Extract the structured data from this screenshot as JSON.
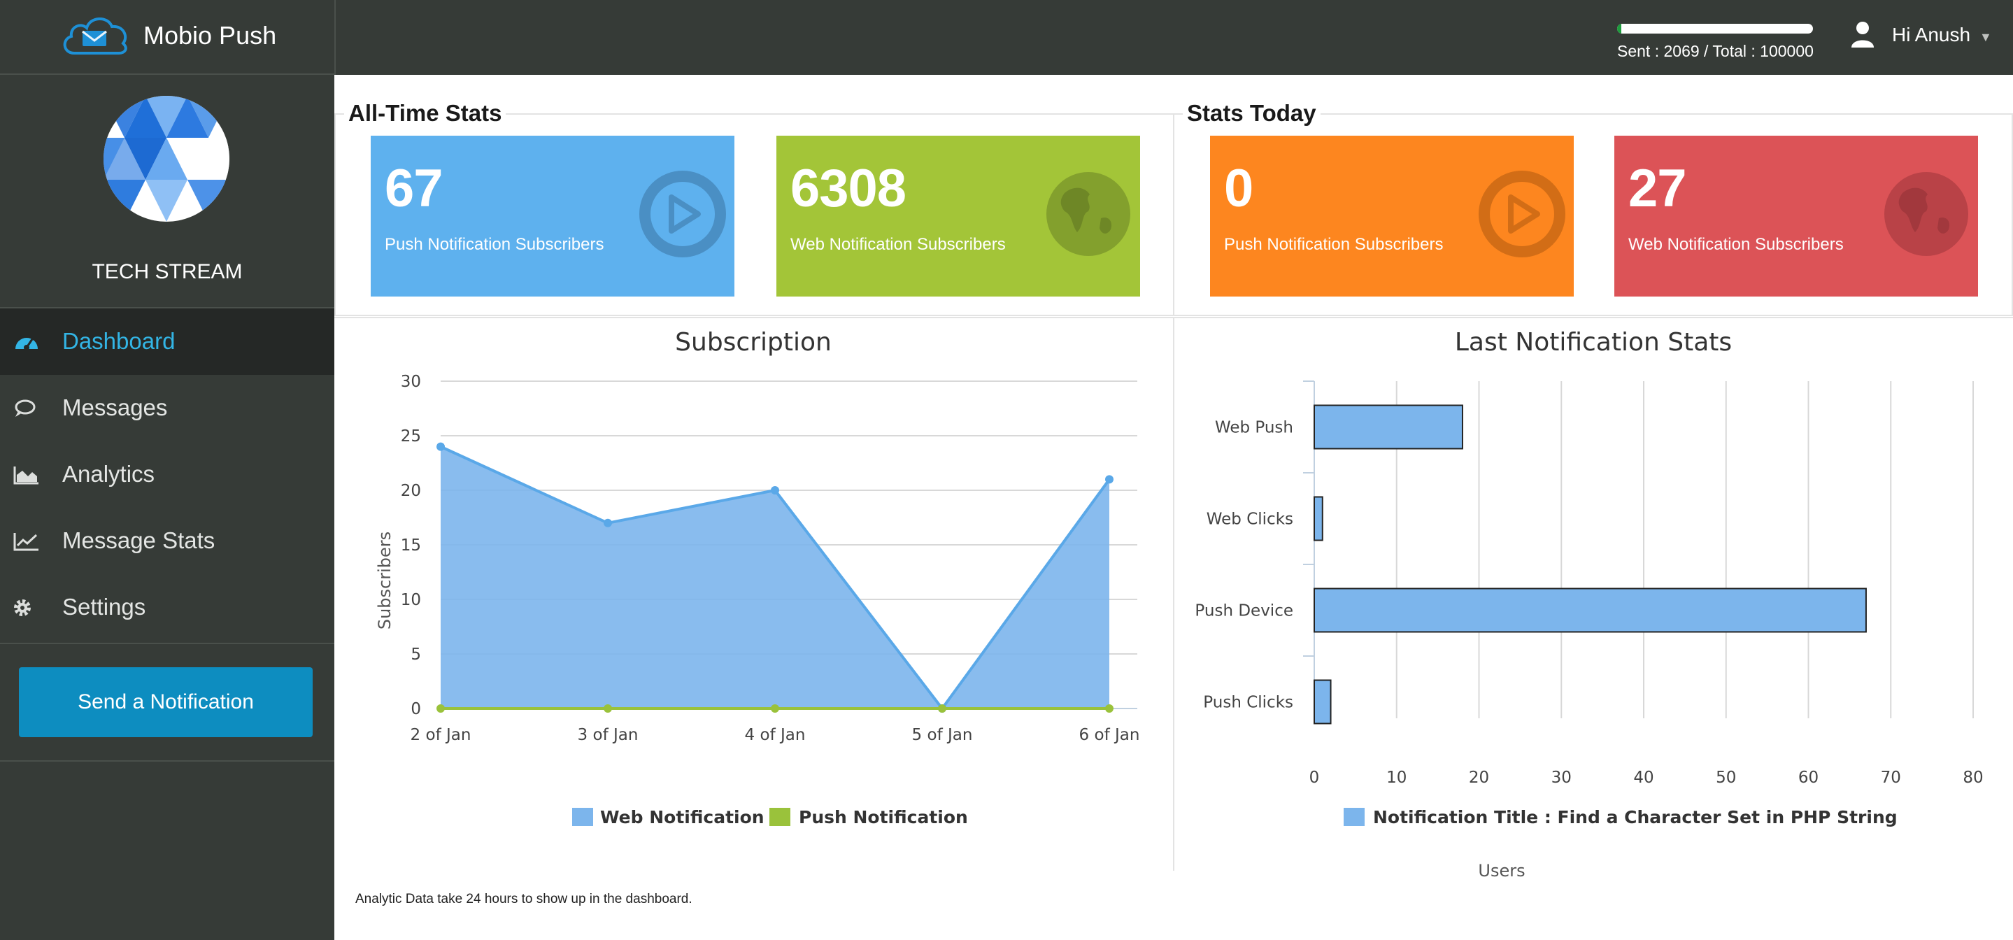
{
  "app": {
    "brand_name": "Mobio Push",
    "org_name": "TECH STREAM"
  },
  "sidebar": {
    "items": [
      {
        "label": "Dashboard",
        "icon": "dashboard-icon",
        "active": true
      },
      {
        "label": "Messages",
        "icon": "chat-icon",
        "active": false
      },
      {
        "label": "Analytics",
        "icon": "area-chart-icon",
        "active": false
      },
      {
        "label": "Message Stats",
        "icon": "line-chart-icon",
        "active": false
      },
      {
        "label": "Settings",
        "icon": "gear-icon",
        "active": false
      }
    ],
    "send_button": "Send a Notification"
  },
  "topbar": {
    "quota_text": "Sent : 2069 / Total : 100000",
    "quota_fraction": 0.02069,
    "greeting": "Hi Anush",
    "caret": "▼"
  },
  "colors": {
    "sidebar_bg": "#363b37",
    "accent": "#33b5e5",
    "blue_card": "#5eb1ee",
    "green_card": "#a3c538",
    "orange_card": "#fd861f",
    "red_card": "#dc5357",
    "web_series": "#7cb5ec",
    "push_series": "#9ac23b"
  },
  "all_time": {
    "title": "All-Time Stats",
    "cards": [
      {
        "value": "67",
        "label": "Push Notification Subscribers",
        "icon": "play-circle-icon"
      },
      {
        "value": "6308",
        "label": "Web Notification Subscribers",
        "icon": "globe-icon"
      }
    ]
  },
  "today": {
    "title": "Stats Today",
    "cards": [
      {
        "value": "0",
        "label": "Push Notification Subscribers",
        "icon": "play-circle-icon"
      },
      {
        "value": "27",
        "label": "Web Notification Subscribers",
        "icon": "globe-icon"
      }
    ]
  },
  "chart_data": [
    {
      "type": "area",
      "title": "Subscription",
      "xlabel": "",
      "ylabel": "Subscribers",
      "categories": [
        "2 of Jan",
        "3 of Jan",
        "4 of Jan",
        "5 of Jan",
        "6 of Jan"
      ],
      "ylim": [
        0,
        30
      ],
      "yticks": [
        "0",
        "5",
        "10",
        "15",
        "20",
        "25",
        "30"
      ],
      "grid": true,
      "legend_position": "bottom",
      "series": [
        {
          "name": "Web Notification",
          "values": [
            24,
            17,
            20,
            0,
            21
          ]
        },
        {
          "name": "Push Notification",
          "values": [
            0,
            0,
            0,
            0,
            0
          ]
        }
      ]
    },
    {
      "type": "bar",
      "orientation": "horizontal",
      "title": "Last Notification Stats",
      "xlabel": "Users",
      "ylabel": "",
      "categories": [
        "Web Push",
        "Web Clicks",
        "Push Device",
        "Push Clicks"
      ],
      "xlim": [
        0,
        80
      ],
      "xticks": [
        "0",
        "10",
        "20",
        "30",
        "40",
        "50",
        "60",
        "70",
        "80"
      ],
      "grid": true,
      "legend_position": "bottom",
      "series": [
        {
          "name": "Notification Title : Find a Character Set in PHP String",
          "values": [
            18,
            1,
            67,
            2
          ]
        }
      ]
    }
  ],
  "footnote": "Analytic Data take 24 hours to show up in the dashboard."
}
